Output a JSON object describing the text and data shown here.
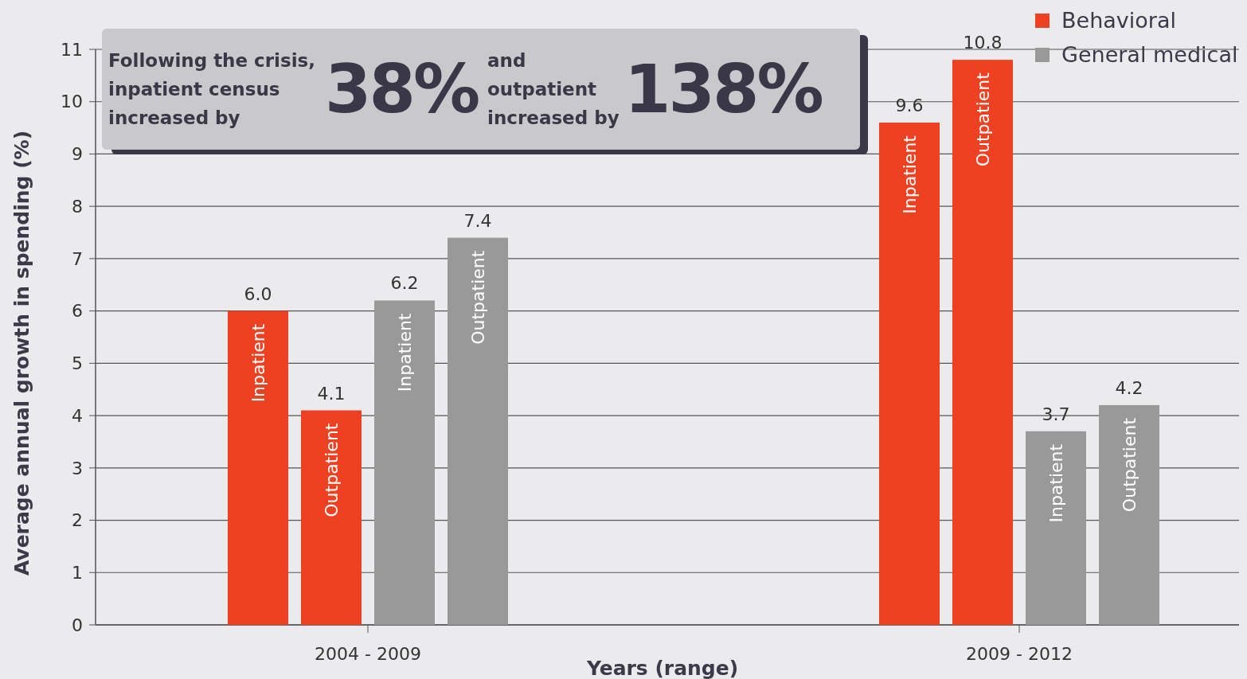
{
  "chart_data": {
    "type": "bar",
    "xlabel": "Years (range)",
    "ylabel": "Average annual growth in spending (%)",
    "categories": [
      "2004 - 2009",
      "2009 - 2012"
    ],
    "series": [
      {
        "name": "Inpatient",
        "color": "#ee4122",
        "values": [
          6.0,
          9.6
        ],
        "value_labels": [
          "6.0",
          "9.6"
        ]
      },
      {
        "name": "Outpatient",
        "color": "#ee4122",
        "values": [
          4.1,
          10.8
        ],
        "value_labels": [
          "4.1",
          "10.8"
        ]
      },
      {
        "name": "Inpatient",
        "color": "#999999",
        "values": [
          6.2,
          3.7
        ],
        "value_labels": [
          "6.2",
          "3.7"
        ]
      },
      {
        "name": "Outpatient",
        "color": "#999999",
        "values": [
          7.4,
          4.2
        ],
        "value_labels": [
          "7.4",
          "4.2"
        ]
      }
    ],
    "ylim": [
      0,
      11
    ],
    "yticks": [
      0,
      1,
      2,
      3,
      4,
      5,
      6,
      7,
      8,
      9,
      10,
      11
    ],
    "grid": "y",
    "annotations": [
      "Behavioral",
      "General medical",
      "Following the crisis, inpatient census increased by",
      "38%",
      "and outpatient increased by",
      "138%"
    ]
  }
}
